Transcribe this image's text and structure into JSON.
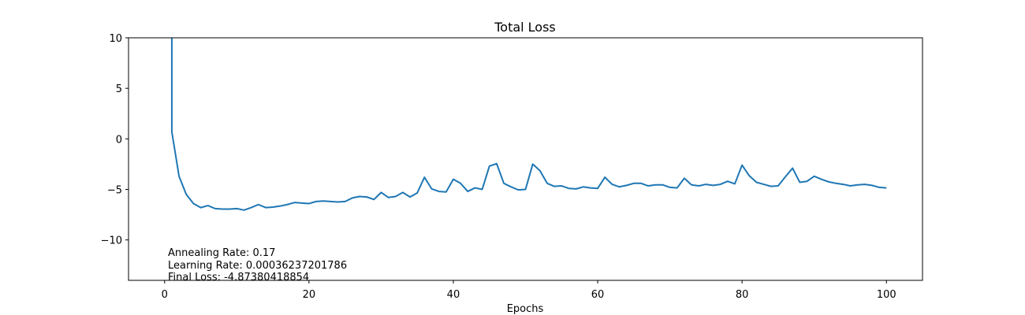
{
  "chart_data": {
    "type": "line",
    "title": "Total Loss",
    "xlabel": "Epochs",
    "ylabel": "",
    "xlim": [
      -5,
      105
    ],
    "ylim": [
      -14,
      10
    ],
    "x_ticks": [
      0,
      20,
      40,
      60,
      80,
      100
    ],
    "y_ticks": [
      10,
      5,
      0,
      -5,
      -10
    ],
    "x_tick_labels": [
      "0",
      "20",
      "40",
      "60",
      "80",
      "100"
    ],
    "y_tick_labels": [
      "10",
      "5",
      "0",
      "−5",
      "−10"
    ],
    "grid": false,
    "series": [
      {
        "color": "#1f77b4",
        "x": [
          1,
          2,
          3,
          4,
          5,
          6,
          7,
          8,
          9,
          10,
          11,
          12,
          13,
          14,
          15,
          16,
          17,
          18,
          19,
          20,
          21,
          22,
          23,
          24,
          25,
          26,
          27,
          28,
          29,
          30,
          31,
          32,
          33,
          34,
          35,
          36,
          37,
          38,
          39,
          40,
          41,
          42,
          43,
          44,
          45,
          46,
          47,
          48,
          49,
          50,
          51,
          52,
          53,
          54,
          55,
          56,
          57,
          58,
          59,
          60,
          61,
          62,
          63,
          64,
          65,
          66,
          67,
          68,
          69,
          70,
          71,
          72,
          73,
          74,
          75,
          76,
          77,
          78,
          79,
          80,
          81,
          82,
          83,
          84,
          85,
          86,
          87,
          88,
          89,
          90,
          91,
          92,
          93,
          94,
          95,
          96,
          97,
          98,
          99,
          100
        ],
        "values": [
          0.7,
          -3.7,
          -5.5,
          -6.4,
          -6.8,
          -6.6,
          -6.9,
          -6.95,
          -6.95,
          -6.9,
          -7.05,
          -6.8,
          -6.5,
          -6.8,
          -6.75,
          -6.65,
          -6.5,
          -6.3,
          -6.35,
          -6.4,
          -6.2,
          -6.15,
          -6.2,
          -6.25,
          -6.2,
          -5.85,
          -5.7,
          -5.75,
          -6.0,
          -5.3,
          -5.8,
          -5.7,
          -5.3,
          -5.75,
          -5.35,
          -3.8,
          -4.95,
          -5.2,
          -5.25,
          -4.0,
          -4.4,
          -5.2,
          -4.85,
          -5.0,
          -2.7,
          -2.45,
          -4.4,
          -4.75,
          -5.05,
          -5.0,
          -2.5,
          -3.15,
          -4.4,
          -4.7,
          -4.65,
          -4.9,
          -4.95,
          -4.75,
          -4.85,
          -4.9,
          -3.8,
          -4.5,
          -4.75,
          -4.6,
          -4.4,
          -4.4,
          -4.65,
          -4.55,
          -4.55,
          -4.8,
          -4.85,
          -3.9,
          -4.55,
          -4.65,
          -4.5,
          -4.6,
          -4.5,
          -4.2,
          -4.45,
          -2.6,
          -3.65,
          -4.3,
          -4.5,
          -4.7,
          -4.65,
          -3.75,
          -2.9,
          -4.3,
          -4.2,
          -3.7,
          -4.0,
          -4.25,
          -4.4,
          -4.5,
          -4.65,
          -4.55,
          -4.5,
          -4.6,
          -4.8,
          -4.85
        ],
        "offscale_start": {
          "x": 0,
          "note": "line rises above the top of the axis"
        }
      }
    ],
    "annotations": [
      "Annealing Rate: 0.17",
      "Learning Rate: 0.00036237201786",
      "Final Loss: -4.87380418854"
    ]
  }
}
